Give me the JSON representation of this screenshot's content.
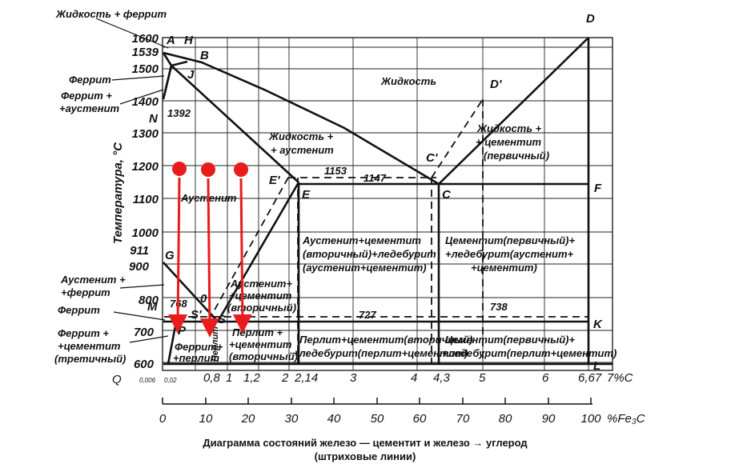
{
  "diagram": {
    "caption": {
      "line1": "Диаграмма состояний железо — цементит и железо → углерод",
      "line2": "(штриховые линии)"
    },
    "y_axis": {
      "label": "Температура, °С",
      "ticks": [
        "1600",
        "1539",
        "1500",
        "1400",
        "1300",
        "1200",
        "1100",
        "1000",
        "911",
        "900",
        "800",
        "700",
        "600"
      ]
    },
    "x_axis_carbon": {
      "ticks": [
        "0,8",
        "1",
        "1,2",
        "2",
        "2,14",
        "3",
        "4",
        "4,3",
        "5",
        "6",
        "6,67"
      ],
      "unit": "7%C",
      "small_ticks": [
        "0,006",
        "0,02"
      ],
      "origin": "Q"
    },
    "x_axis_cementite": {
      "ticks": [
        "0",
        "10",
        "20",
        "30",
        "40",
        "50",
        "60",
        "70",
        "80",
        "90",
        "100"
      ],
      "unit": "%Fe₃C"
    },
    "points": {
      "A": "A",
      "H": "H",
      "B": "B",
      "J": "J",
      "N": "N",
      "D": "D",
      "D_prime": "D'",
      "C_prime": "C'",
      "C": "C",
      "E_prime": "E'",
      "E": "E",
      "F": "F",
      "G": "G",
      "M": "M",
      "O": "0",
      "S": "S",
      "S_prime": "S'",
      "P": "P",
      "K": "K",
      "L": "L"
    },
    "temps": {
      "t1392": "1392",
      "t1153": "1153",
      "t1147": "1147",
      "t768": "768",
      "t727": "727",
      "t738": "738"
    },
    "left_labels": {
      "liquid_ferrite": "Жидкость + феррит",
      "ferrite_top": "Феррит",
      "ferrite_austenite_1": "Феррит +",
      "ferrite_austenite_2": "+аустенит",
      "austenite_ferrite_1": "Аустенит +",
      "austenite_ferrite_2": "+феррит",
      "ferrite_low": "Феррит",
      "ferrite_cementite_1": "Феррит +",
      "ferrite_cementite_2": "+цементит",
      "ferrite_cementite_3": "(третичный)"
    },
    "regions": {
      "liquid": "Жидкость",
      "liquid_austenite_1": "Жидкость +",
      "liquid_austenite_2": "+ аустенит",
      "liquid_cementite_1": "Жидкость +",
      "liquid_cementite_2": "+ цементит",
      "liquid_cementite_3": "(первичный)",
      "austenite": "Аустенит",
      "aus_cem_led_1": "Аустенит+цементит",
      "aus_cem_led_2": "(вторичный)+ледебурит",
      "aus_cem_led_3": "(аустенит+цементит)",
      "cem_led_aus_1": "Цементит(первичный)+",
      "cem_led_aus_2": "+ледебурит(аустенит+",
      "cem_led_aus_3": "+цементит)",
      "aus_cem2_1": "Аустенит+",
      "aus_cem2_2": "+цементит",
      "aus_cem2_3": "(вторичный)",
      "perlit_cem_1": "Перлит +",
      "perlit_cem_2": "+цементит",
      "perlit_cem_3": "(вторичный)",
      "ferrite_perlit_1": "Феррит+",
      "ferrite_perlit_2": "+перлит",
      "perlit_vertical": "Перлит",
      "perlit_led_1": "Перлит+цементит(вторичный)",
      "perlit_led_2": "+ледебурит(перлит+цементит)",
      "cem_led_perl_1": "Цементит(первичный)+",
      "cem_led_perl_2": "+ледебурит(перлит+цементит)"
    },
    "annotation_colors": {
      "marker": "#e81c1c",
      "line": "#111111"
    },
    "markers": [
      {
        "temperature": 1200,
        "carbon_percent": 0.4
      },
      {
        "temperature": 1200,
        "carbon_percent": 0.8
      },
      {
        "temperature": 1200,
        "carbon_percent": 1.4
      }
    ]
  }
}
